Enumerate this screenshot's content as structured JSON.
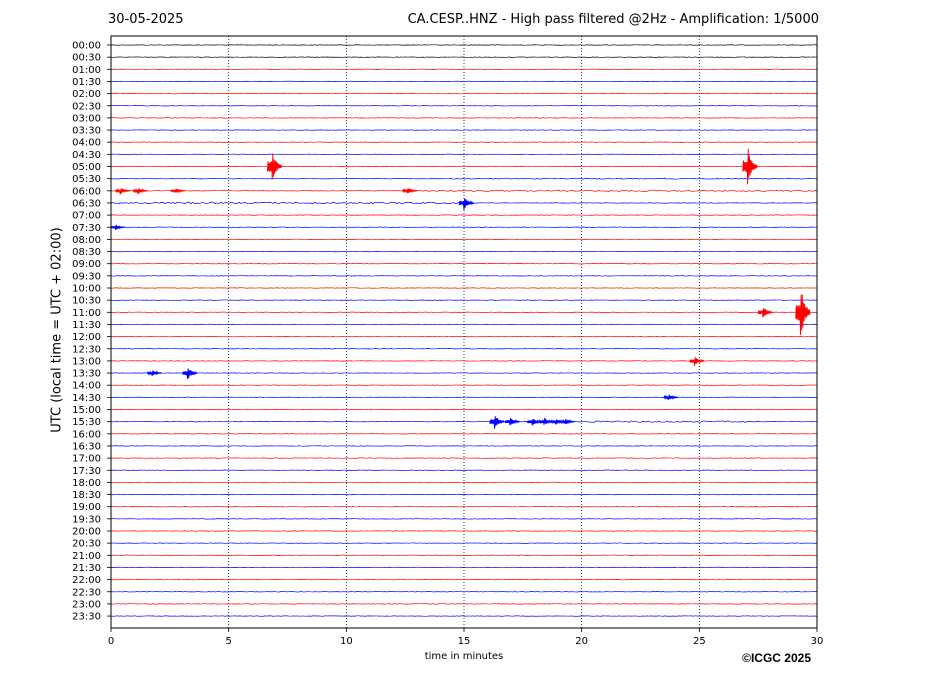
{
  "header": {
    "date": "30-05-2025",
    "title": "CA.CESP..HNZ - High pass filtered @2Hz - Amplification: 1/5000"
  },
  "footer": {
    "copyright": "©ICGC 2025"
  },
  "colors": {
    "odd_trace": "#ff0000",
    "even_trace": "#0000ff",
    "grid": "#000080",
    "frame": "#000000"
  },
  "chart_data": {
    "type": "line",
    "xlabel": "time in minutes",
    "ylabel": "UTC (local time = UTC + 02:00)",
    "xlim": [
      0,
      30
    ],
    "x_ticks": [
      "0",
      "5",
      "10",
      "15",
      "20",
      "25",
      "30"
    ],
    "grid": "vertical dotted at 5-minute ticks",
    "row_labels": [
      "00:00",
      "00:30",
      "01:00",
      "01:30",
      "02:00",
      "02:30",
      "03:00",
      "03:30",
      "04:00",
      "04:30",
      "05:00",
      "05:30",
      "06:00",
      "06:30",
      "07:00",
      "07:30",
      "08:00",
      "08:30",
      "09:00",
      "09:30",
      "10:00",
      "10:30",
      "11:00",
      "11:30",
      "12:00",
      "12:30",
      "13:00",
      "13:30",
      "14:00",
      "14:30",
      "15:00",
      "15:30",
      "16:00",
      "16:30",
      "17:00",
      "17:30",
      "18:00",
      "18:30",
      "19:00",
      "19:30",
      "20:00",
      "20:30",
      "21:00",
      "21:30",
      "22:00",
      "22:30",
      "23:00",
      "23:30"
    ],
    "trace_colors": "alternating red/blue per row",
    "events": [
      {
        "row": "05:00",
        "minute": 6.85,
        "amplitude": 2.0
      },
      {
        "row": "05:00",
        "minute": 27.05,
        "amplitude": 2.5
      },
      {
        "row": "06:00",
        "minute": 0.4,
        "amplitude": 0.4
      },
      {
        "row": "06:00",
        "minute": 1.15,
        "amplitude": 0.4
      },
      {
        "row": "06:00",
        "minute": 2.75,
        "amplitude": 0.3
      },
      {
        "row": "06:00",
        "minute": 12.6,
        "amplitude": 0.4
      },
      {
        "row": "06:30",
        "minute": 15.0,
        "amplitude": 0.8
      },
      {
        "row": "07:30",
        "minute": 0.2,
        "amplitude": 0.3
      },
      {
        "row": "11:00",
        "minute": 27.7,
        "amplitude": 0.7
      },
      {
        "row": "11:00",
        "minute": 29.3,
        "amplitude": 3.5
      },
      {
        "row": "13:00",
        "minute": 24.8,
        "amplitude": 0.6
      },
      {
        "row": "13:30",
        "minute": 1.75,
        "amplitude": 0.4
      },
      {
        "row": "13:30",
        "minute": 3.25,
        "amplitude": 0.8
      },
      {
        "row": "14:30",
        "minute": 23.7,
        "amplitude": 0.4
      },
      {
        "row": "15:30",
        "minute": 16.3,
        "amplitude": 0.9
      },
      {
        "row": "15:30",
        "minute": 16.95,
        "amplitude": 0.6
      },
      {
        "row": "15:30",
        "minute": 17.9,
        "amplitude": 0.5
      },
      {
        "row": "15:30",
        "minute": 18.4,
        "amplitude": 0.5
      },
      {
        "row": "15:30",
        "minute": 18.9,
        "amplitude": 0.4
      },
      {
        "row": "15:30",
        "minute": 19.3,
        "amplitude": 0.4
      }
    ],
    "noisy_segments": [
      {
        "row": "06:00",
        "from_minute": 12.5,
        "to_minute": 30,
        "amplitude": 0.12
      },
      {
        "row": "06:30",
        "from_minute": 0,
        "to_minute": 15.5,
        "amplitude": 0.14
      },
      {
        "row": "05:30",
        "from_minute": 14.5,
        "to_minute": 30,
        "amplitude": 0.08
      },
      {
        "row": "15:30",
        "from_minute": 19.3,
        "to_minute": 27.1,
        "amplitude": 0.12
      }
    ]
  }
}
